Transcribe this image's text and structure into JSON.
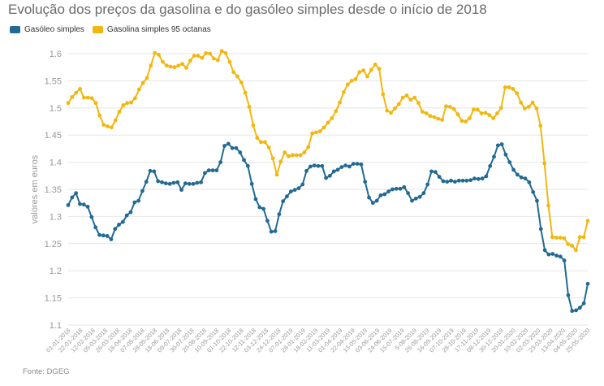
{
  "title": "Evolução dos preços da gasolina e do gasóleo simples desde o início de 2018",
  "source": "Fonte: DGEG",
  "colors": {
    "diesel": "#236a93",
    "petrol": "#f2b70f",
    "grid": "#e6e6e6",
    "text": "#999999"
  },
  "chart_data": {
    "type": "line",
    "title": "Evolução dos preços da gasolina e do gasóleo simples desde o início de 2018",
    "xlabel": "",
    "ylabel": "valores em euros",
    "ylim": [
      1.1,
      1.6
    ],
    "yticks": [
      "1.1",
      "1.15",
      "1.2",
      "1.25",
      "1.3",
      "1.35",
      "1.4",
      "1.45",
      "1.5",
      "1.55",
      "1.6"
    ],
    "xticks": [
      "01-01-2018",
      "22-01-2018",
      "12-02-2018",
      "05-03-2018",
      "26-03-2018",
      "16-04-2018",
      "07-05-2018",
      "28-05-2018",
      "18-06-2018",
      "09-07-2018",
      "30-07-2018",
      "20-08-2018",
      "10-09-2018",
      "01-10-2018",
      "22-10-2018",
      "12-11-2018",
      "03-12-2018",
      "24-12-2018",
      "07-01-2019",
      "28-01-2019",
      "18-02-2019",
      "11-03-2019",
      "01-04-2019",
      "22-04-2019",
      "13-05-2019",
      "03-06-2019",
      "24-06-2019",
      "15-07-2019",
      "5-08-2019",
      "26-08-2019",
      "16-09-2019",
      "07-10-2019",
      "28-10-2019",
      "17-11-2019",
      "08-12-2019",
      "30-12-2019",
      "20-01-2020",
      "10-02-2020",
      "02-03-2020",
      "23-03-2020",
      "13-04-2020",
      "04-05-2020",
      "25-05-2020"
    ],
    "grid": true,
    "legend": "top-left",
    "series": [
      {
        "name": "Gasóleo simples",
        "color": "#236a93",
        "values": [
          1.321,
          1.335,
          1.343,
          1.323,
          1.322,
          1.318,
          1.299,
          1.28,
          1.266,
          1.265,
          1.264,
          1.258,
          1.277,
          1.285,
          1.29,
          1.302,
          1.308,
          1.326,
          1.329,
          1.347,
          1.364,
          1.384,
          1.383,
          1.365,
          1.363,
          1.361,
          1.36,
          1.362,
          1.363,
          1.349,
          1.361,
          1.36,
          1.36,
          1.362,
          1.363,
          1.38,
          1.385,
          1.385,
          1.385,
          1.4,
          1.43,
          1.434,
          1.426,
          1.426,
          1.418,
          1.404,
          1.393,
          1.36,
          1.332,
          1.317,
          1.314,
          1.292,
          1.272,
          1.273,
          1.304,
          1.328,
          1.337,
          1.346,
          1.349,
          1.352,
          1.359,
          1.384,
          1.392,
          1.394,
          1.393,
          1.393,
          1.371,
          1.375,
          1.383,
          1.386,
          1.391,
          1.394,
          1.392,
          1.397,
          1.397,
          1.396,
          1.364,
          1.335,
          1.325,
          1.329,
          1.339,
          1.341,
          1.346,
          1.35,
          1.351,
          1.351,
          1.354,
          1.343,
          1.329,
          1.333,
          1.336,
          1.343,
          1.359,
          1.383,
          1.382,
          1.373,
          1.365,
          1.364,
          1.366,
          1.364,
          1.366,
          1.366,
          1.366,
          1.367,
          1.37,
          1.369,
          1.37,
          1.374,
          1.393,
          1.41,
          1.431,
          1.433,
          1.414,
          1.4,
          1.386,
          1.377,
          1.372,
          1.37,
          1.363,
          1.345,
          1.329,
          1.277,
          1.238,
          1.23,
          1.231,
          1.228,
          1.226,
          1.219,
          1.155,
          1.126,
          1.127,
          1.132,
          1.14,
          1.176
        ]
      },
      {
        "name": "Gasolina simples 95 octanas",
        "color": "#f2b70f",
        "values": [
          1.509,
          1.52,
          1.528,
          1.535,
          1.519,
          1.519,
          1.518,
          1.509,
          1.486,
          1.469,
          1.466,
          1.464,
          1.477,
          1.493,
          1.505,
          1.509,
          1.51,
          1.518,
          1.534,
          1.546,
          1.555,
          1.578,
          1.601,
          1.598,
          1.585,
          1.578,
          1.576,
          1.575,
          1.578,
          1.581,
          1.574,
          1.587,
          1.596,
          1.596,
          1.592,
          1.601,
          1.6,
          1.591,
          1.588,
          1.605,
          1.601,
          1.585,
          1.566,
          1.558,
          1.547,
          1.528,
          1.502,
          1.468,
          1.445,
          1.437,
          1.437,
          1.427,
          1.407,
          1.377,
          1.401,
          1.418,
          1.411,
          1.413,
          1.413,
          1.413,
          1.418,
          1.428,
          1.453,
          1.455,
          1.457,
          1.464,
          1.473,
          1.481,
          1.494,
          1.51,
          1.529,
          1.543,
          1.55,
          1.553,
          1.566,
          1.569,
          1.558,
          1.57,
          1.58,
          1.572,
          1.525,
          1.495,
          1.491,
          1.499,
          1.507,
          1.519,
          1.523,
          1.515,
          1.519,
          1.509,
          1.493,
          1.49,
          1.485,
          1.483,
          1.48,
          1.478,
          1.503,
          1.502,
          1.498,
          1.488,
          1.476,
          1.475,
          1.481,
          1.497,
          1.497,
          1.49,
          1.491,
          1.487,
          1.481,
          1.49,
          1.5,
          1.538,
          1.538,
          1.535,
          1.527,
          1.51,
          1.499,
          1.502,
          1.51,
          1.499,
          1.467,
          1.398,
          1.32,
          1.262,
          1.261,
          1.261,
          1.26,
          1.249,
          1.246,
          1.238,
          1.262,
          1.262,
          1.292
        ]
      }
    ]
  }
}
